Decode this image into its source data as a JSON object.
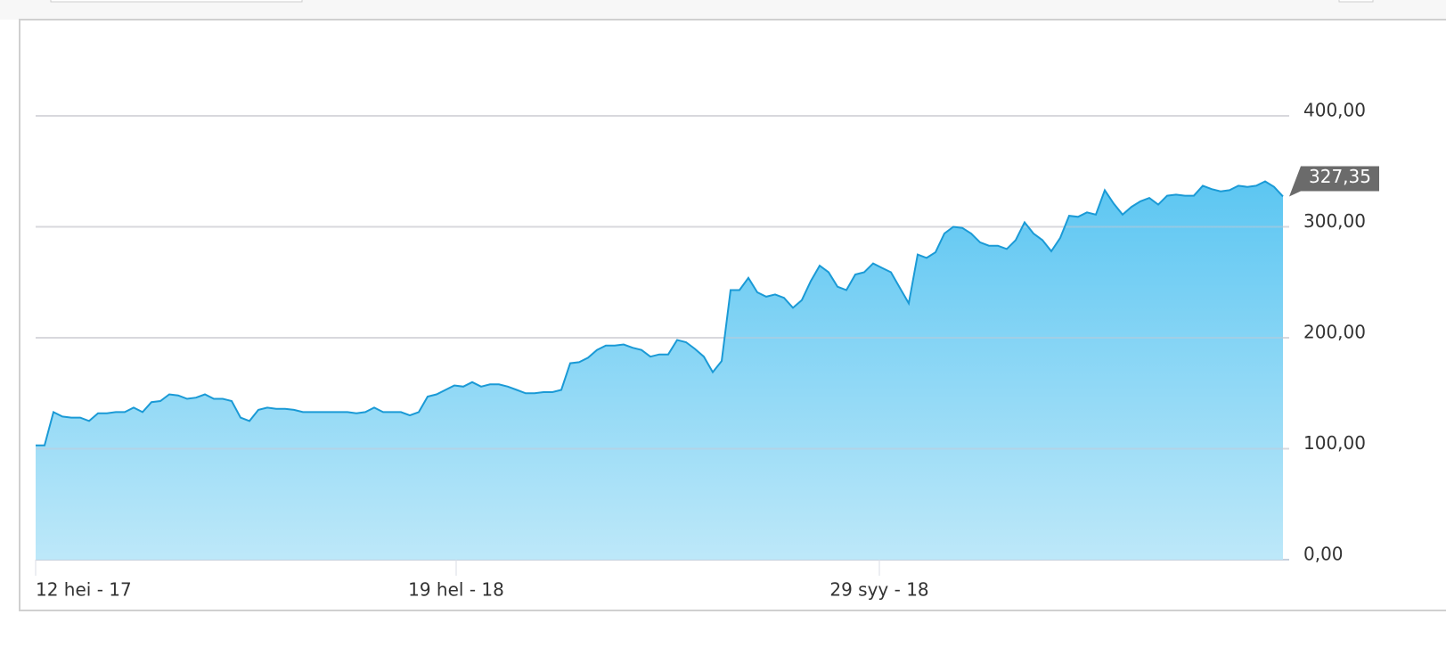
{
  "chart_data": {
    "type": "area",
    "values": [
      103,
      103,
      133,
      129,
      128,
      128,
      125,
      132,
      132,
      133,
      133,
      137,
      133,
      142,
      143,
      149,
      148,
      145,
      146,
      149,
      145,
      145,
      143,
      128,
      125,
      135,
      137,
      136,
      136,
      135,
      133,
      133,
      133,
      133,
      133,
      133,
      132,
      133,
      137,
      133,
      133,
      133,
      130,
      133,
      147,
      149,
      153,
      157,
      156,
      160,
      156,
      158,
      158,
      156,
      153,
      150,
      150,
      151,
      151,
      153,
      177,
      178,
      182,
      189,
      193,
      193,
      194,
      191,
      189,
      183,
      185,
      185,
      198,
      196,
      190,
      183,
      169,
      179,
      243,
      243,
      254,
      241,
      237,
      239,
      236,
      227,
      234,
      251,
      265,
      259,
      246,
      243,
      257,
      259,
      267,
      263,
      259,
      245,
      231,
      275,
      272,
      277,
      294,
      300,
      299,
      294,
      286,
      283,
      283,
      280,
      288,
      304,
      294,
      288,
      278,
      290,
      310,
      309,
      313,
      311,
      333,
      321,
      311,
      318,
      323,
      326,
      320,
      328,
      329,
      328,
      328,
      337,
      334,
      332,
      333,
      337,
      336,
      337,
      341,
      336,
      327.35
    ],
    "value_labels": [
      null,
      null,
      null,
      null,
      null,
      null,
      null,
      null,
      null,
      null,
      null,
      null,
      null,
      null,
      null,
      null,
      null,
      null,
      null,
      null,
      null,
      null,
      null,
      null,
      null,
      null,
      null,
      null,
      null,
      null,
      null,
      null,
      null,
      null,
      null,
      null,
      null,
      null,
      null,
      null,
      null,
      null,
      null,
      null,
      null,
      null,
      null,
      null,
      null,
      null,
      null,
      null,
      null,
      null,
      null,
      null,
      null,
      null,
      null,
      null,
      null,
      null,
      null,
      null,
      null,
      null,
      null,
      null,
      null,
      null,
      null,
      null,
      null,
      null,
      null,
      null,
      null,
      null,
      null,
      null,
      null,
      null,
      null,
      null,
      null,
      null,
      null,
      null,
      null,
      null,
      null,
      null,
      null,
      null,
      null,
      null,
      null,
      null,
      null,
      null,
      null,
      null,
      null,
      null,
      null,
      null,
      null,
      null,
      null,
      null,
      null,
      null,
      null,
      null,
      null,
      null,
      null,
      null,
      null,
      null,
      null,
      null,
      null,
      null,
      null,
      null,
      null,
      null,
      null,
      null,
      null,
      null,
      null,
      null,
      null,
      null,
      null,
      null,
      null,
      null,
      "327,35"
    ],
    "color": "#1a9ad6",
    "xlim": [
      0,
      140.7
    ],
    "xticks": [
      {
        "value": 0,
        "label": "12 hei - 17"
      },
      {
        "value": 47.2,
        "label": "19 hel - 18"
      },
      {
        "value": 94.7,
        "label": "29 syy - 18"
      }
    ],
    "ylim": [
      0,
      400
    ],
    "yticks": [
      {
        "value": 0,
        "label": "0,00"
      },
      {
        "value": 100,
        "label": "100,00"
      },
      {
        "value": 200,
        "label": "200,00"
      },
      {
        "value": 300,
        "label": "300,00"
      },
      {
        "value": 400,
        "label": "400,00"
      }
    ],
    "grid": true
  }
}
